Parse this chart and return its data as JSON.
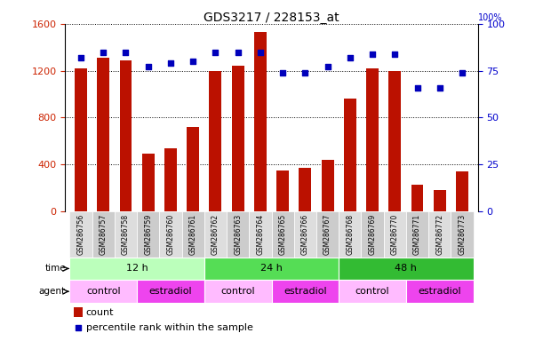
{
  "title": "GDS3217 / 228153_at",
  "samples": [
    "GSM286756",
    "GSM286757",
    "GSM286758",
    "GSM286759",
    "GSM286760",
    "GSM286761",
    "GSM286762",
    "GSM286763",
    "GSM286764",
    "GSM286765",
    "GSM286766",
    "GSM286767",
    "GSM286768",
    "GSM286769",
    "GSM286770",
    "GSM286771",
    "GSM286772",
    "GSM286773"
  ],
  "counts": [
    1220,
    1310,
    1290,
    490,
    540,
    720,
    1200,
    1240,
    1530,
    350,
    370,
    440,
    960,
    1220,
    1200,
    230,
    185,
    340
  ],
  "percentiles": [
    82,
    85,
    85,
    77,
    79,
    80,
    85,
    85,
    85,
    74,
    74,
    77,
    82,
    84,
    84,
    66,
    66,
    74
  ],
  "ylim_left": [
    0,
    1600
  ],
  "ylim_right": [
    0,
    100
  ],
  "yticks_left": [
    0,
    400,
    800,
    1200,
    1600
  ],
  "yticks_right": [
    0,
    25,
    50,
    75,
    100
  ],
  "bar_color": "#BB1100",
  "dot_color": "#0000BB",
  "grid_color": "#000000",
  "bg_color": "#FFFFFF",
  "time_groups": [
    {
      "label": "12 h",
      "start": 0,
      "end": 5,
      "color": "#BBFFBB"
    },
    {
      "label": "24 h",
      "start": 6,
      "end": 11,
      "color": "#55DD55"
    },
    {
      "label": "48 h",
      "start": 12,
      "end": 17,
      "color": "#33BB33"
    }
  ],
  "agent_groups": [
    {
      "label": "control",
      "start": 0,
      "end": 2,
      "color": "#FFBBFF"
    },
    {
      "label": "estradiol",
      "start": 3,
      "end": 5,
      "color": "#EE44EE"
    },
    {
      "label": "control",
      "start": 6,
      "end": 8,
      "color": "#FFBBFF"
    },
    {
      "label": "estradiol",
      "start": 9,
      "end": 11,
      "color": "#EE44EE"
    },
    {
      "label": "control",
      "start": 12,
      "end": 14,
      "color": "#FFBBFF"
    },
    {
      "label": "estradiol",
      "start": 15,
      "end": 17,
      "color": "#EE44EE"
    }
  ],
  "tick_bg_color_odd": "#DDDDDD",
  "tick_bg_color_even": "#CCCCCC",
  "legend_count_color": "#BB1100",
  "legend_dot_color": "#0000BB",
  "title_fontsize": 10,
  "axis_label_color_left": "#CC2200",
  "axis_label_color_right": "#0000CC",
  "bar_width": 0.55,
  "n_samples": 18
}
